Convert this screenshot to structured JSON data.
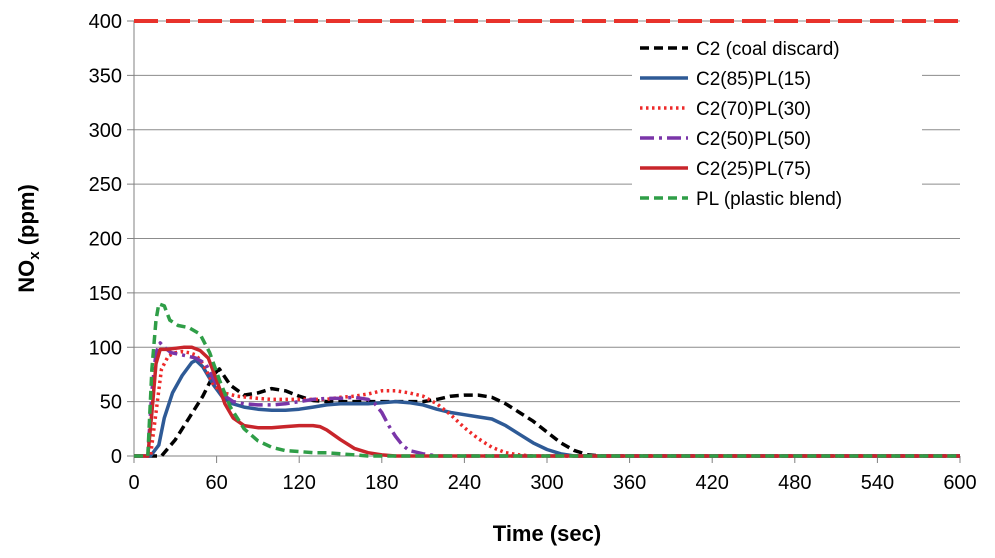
{
  "chart_data": {
    "type": "line",
    "title": "",
    "xlabel": "Time (sec)",
    "ylabel": {
      "main": "NO",
      "sub": "x",
      "rest": " (ppm)"
    },
    "xlim": [
      0,
      600
    ],
    "ylim": [
      0,
      400
    ],
    "xticks": [
      "0",
      "60",
      "120",
      "180",
      "240",
      "300",
      "360",
      "420",
      "480",
      "540",
      "600"
    ],
    "yticks": [
      "0",
      "50",
      "100",
      "150",
      "200",
      "250",
      "300",
      "350",
      "400"
    ],
    "grid": "horizontal",
    "legend_position": "top-right",
    "reference_line": {
      "y": 400,
      "color": "#e8322b",
      "style": "dashed"
    },
    "series": [
      {
        "name": "C2 (coal discard)",
        "color": "#000000",
        "style": "dashed",
        "points": [
          [
            0,
            0
          ],
          [
            20,
            0
          ],
          [
            30,
            15
          ],
          [
            40,
            35
          ],
          [
            50,
            55
          ],
          [
            58,
            75
          ],
          [
            62,
            80
          ],
          [
            70,
            65
          ],
          [
            80,
            56
          ],
          [
            90,
            58
          ],
          [
            100,
            62
          ],
          [
            110,
            60
          ],
          [
            120,
            55
          ],
          [
            130,
            51
          ],
          [
            140,
            50
          ],
          [
            150,
            50
          ],
          [
            160,
            50
          ],
          [
            170,
            50
          ],
          [
            180,
            50
          ],
          [
            190,
            50
          ],
          [
            200,
            50
          ],
          [
            210,
            50
          ],
          [
            220,
            52
          ],
          [
            230,
            55
          ],
          [
            240,
            56
          ],
          [
            250,
            56
          ],
          [
            260,
            54
          ],
          [
            270,
            48
          ],
          [
            280,
            40
          ],
          [
            290,
            32
          ],
          [
            300,
            22
          ],
          [
            310,
            12
          ],
          [
            320,
            5
          ],
          [
            330,
            1
          ],
          [
            340,
            0
          ],
          [
            600,
            0
          ]
        ]
      },
      {
        "name": "C2(85)PL(15)",
        "color": "#2e5a96",
        "style": "solid",
        "points": [
          [
            0,
            0
          ],
          [
            12,
            0
          ],
          [
            18,
            10
          ],
          [
            22,
            35
          ],
          [
            28,
            58
          ],
          [
            35,
            74
          ],
          [
            42,
            86
          ],
          [
            45,
            88
          ],
          [
            50,
            82
          ],
          [
            58,
            65
          ],
          [
            65,
            53
          ],
          [
            72,
            48
          ],
          [
            80,
            45
          ],
          [
            90,
            43
          ],
          [
            100,
            42
          ],
          [
            110,
            42
          ],
          [
            120,
            43
          ],
          [
            130,
            45
          ],
          [
            140,
            47
          ],
          [
            150,
            48
          ],
          [
            160,
            48
          ],
          [
            170,
            48
          ],
          [
            180,
            49
          ],
          [
            190,
            50
          ],
          [
            200,
            49
          ],
          [
            210,
            47
          ],
          [
            220,
            43
          ],
          [
            230,
            40
          ],
          [
            240,
            38
          ],
          [
            250,
            36
          ],
          [
            260,
            34
          ],
          [
            270,
            28
          ],
          [
            280,
            20
          ],
          [
            290,
            12
          ],
          [
            300,
            6
          ],
          [
            310,
            2
          ],
          [
            320,
            0
          ],
          [
            600,
            0
          ]
        ]
      },
      {
        "name": "C2(70)PL(30)",
        "color": "#ee2a2a",
        "style": "dotted",
        "points": [
          [
            0,
            0
          ],
          [
            12,
            0
          ],
          [
            16,
            40
          ],
          [
            20,
            80
          ],
          [
            25,
            92
          ],
          [
            30,
            95
          ],
          [
            35,
            96
          ],
          [
            40,
            95
          ],
          [
            45,
            93
          ],
          [
            50,
            85
          ],
          [
            58,
            65
          ],
          [
            65,
            58
          ],
          [
            75,
            55
          ],
          [
            90,
            53
          ],
          [
            100,
            52
          ],
          [
            110,
            52
          ],
          [
            120,
            52
          ],
          [
            130,
            52
          ],
          [
            140,
            52
          ],
          [
            150,
            54
          ],
          [
            160,
            55
          ],
          [
            170,
            57
          ],
          [
            180,
            60
          ],
          [
            190,
            60
          ],
          [
            200,
            58
          ],
          [
            210,
            55
          ],
          [
            220,
            48
          ],
          [
            230,
            38
          ],
          [
            240,
            26
          ],
          [
            250,
            16
          ],
          [
            260,
            8
          ],
          [
            270,
            3
          ],
          [
            280,
            1
          ],
          [
            290,
            0
          ],
          [
            600,
            0
          ]
        ]
      },
      {
        "name": "C2(50)PL(50)",
        "color": "#7a35a8",
        "style": "dashdot",
        "points": [
          [
            0,
            0
          ],
          [
            10,
            0
          ],
          [
            13,
            60
          ],
          [
            16,
            95
          ],
          [
            19,
            104
          ],
          [
            22,
            100
          ],
          [
            27,
            95
          ],
          [
            35,
            93
          ],
          [
            45,
            90
          ],
          [
            52,
            85
          ],
          [
            58,
            70
          ],
          [
            65,
            56
          ],
          [
            72,
            50
          ],
          [
            80,
            48
          ],
          [
            90,
            47
          ],
          [
            100,
            47
          ],
          [
            110,
            48
          ],
          [
            120,
            50
          ],
          [
            130,
            52
          ],
          [
            140,
            53
          ],
          [
            150,
            53
          ],
          [
            160,
            54
          ],
          [
            170,
            52
          ],
          [
            175,
            48
          ],
          [
            180,
            40
          ],
          [
            185,
            28
          ],
          [
            190,
            18
          ],
          [
            195,
            10
          ],
          [
            200,
            5
          ],
          [
            210,
            2
          ],
          [
            220,
            0
          ],
          [
            600,
            0
          ]
        ]
      },
      {
        "name": "C2(25)PL(75)",
        "color": "#c8252b",
        "style": "solid",
        "points": [
          [
            0,
            0
          ],
          [
            10,
            0
          ],
          [
            13,
            40
          ],
          [
            16,
            85
          ],
          [
            19,
            98
          ],
          [
            24,
            98
          ],
          [
            30,
            99
          ],
          [
            36,
            100
          ],
          [
            42,
            100
          ],
          [
            48,
            97
          ],
          [
            54,
            90
          ],
          [
            60,
            70
          ],
          [
            66,
            48
          ],
          [
            72,
            35
          ],
          [
            80,
            28
          ],
          [
            90,
            26
          ],
          [
            100,
            26
          ],
          [
            110,
            27
          ],
          [
            120,
            28
          ],
          [
            130,
            28
          ],
          [
            135,
            27
          ],
          [
            140,
            24
          ],
          [
            150,
            15
          ],
          [
            160,
            7
          ],
          [
            170,
            3
          ],
          [
            180,
            1
          ],
          [
            190,
            0
          ],
          [
            600,
            0
          ]
        ]
      },
      {
        "name": "PL (plastic blend)",
        "color": "#2f9e47",
        "style": "dashed",
        "points": [
          [
            0,
            0
          ],
          [
            10,
            0
          ],
          [
            13,
            80
          ],
          [
            16,
            125
          ],
          [
            18,
            140
          ],
          [
            22,
            138
          ],
          [
            26,
            125
          ],
          [
            32,
            120
          ],
          [
            40,
            118
          ],
          [
            48,
            112
          ],
          [
            55,
            95
          ],
          [
            62,
            70
          ],
          [
            70,
            45
          ],
          [
            80,
            25
          ],
          [
            90,
            14
          ],
          [
            100,
            8
          ],
          [
            110,
            5
          ],
          [
            120,
            4
          ],
          [
            130,
            3
          ],
          [
            140,
            3
          ],
          [
            150,
            2
          ],
          [
            160,
            1
          ],
          [
            170,
            0
          ],
          [
            600,
            0
          ]
        ]
      }
    ]
  }
}
